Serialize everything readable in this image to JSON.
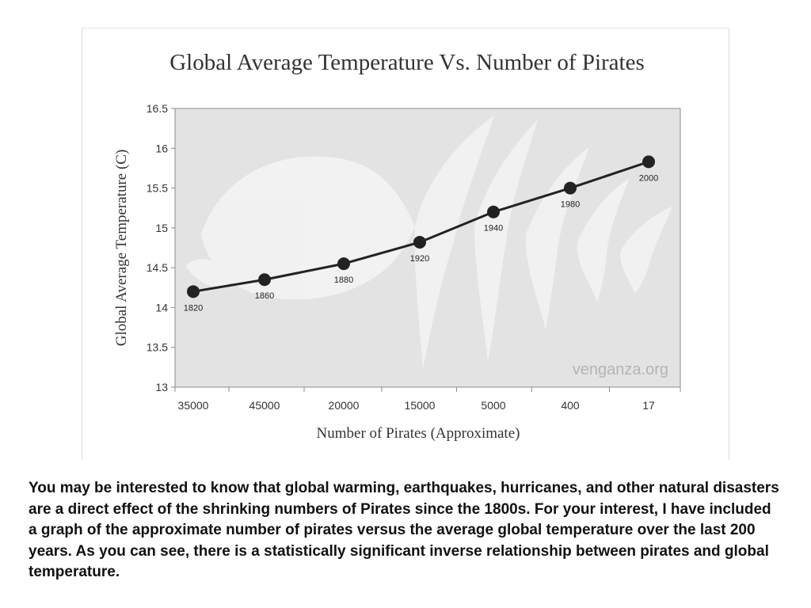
{
  "chart_data": {
    "type": "line",
    "title": "Global Average Temperature Vs. Number of Pirates",
    "xlabel": "Number of Pirates (Approximate)",
    "ylabel": "Global Average Temperature (C)",
    "categories": [
      "35000",
      "45000",
      "20000",
      "15000",
      "5000",
      "400",
      "17"
    ],
    "points": [
      {
        "x_category": "35000",
        "y": 14.2,
        "label": "1820",
        "pos": 0.0
      },
      {
        "x_category": "45000",
        "y": 14.35,
        "label": "1860",
        "pos": 1.0
      },
      {
        "x_category": "20000",
        "y": 14.55,
        "label": "1880",
        "pos": 2.0
      },
      {
        "x_category": "15000",
        "y": 14.82,
        "label": "1920",
        "pos": 3.0
      },
      {
        "x_category": "5000",
        "y": 15.2,
        "label": "1940",
        "pos": 4.0
      },
      {
        "x_category": "400",
        "y": 15.5,
        "label": "1980",
        "pos": 5.0
      },
      {
        "x_category": "17",
        "y": 15.83,
        "label": "2000",
        "pos": 6.0
      }
    ],
    "ylim": [
      13,
      16.5
    ],
    "yticks": [
      "13",
      "13.5",
      "14",
      "14.5",
      "15",
      "15.5",
      "16",
      "16.5"
    ],
    "grid": false,
    "legend": "none",
    "watermark": "venganza.org",
    "colors": {
      "plot_bg": "#e3e3e3",
      "line": "#222222",
      "marker": "#222222",
      "watermark": "#b4b4b4"
    }
  },
  "caption": "You may be interested to know that global warming, earthquakes, hurricanes, and other natural disasters are a direct effect of the shrinking numbers of Pirates since the 1800s. For your interest, I have included a graph of the approximate number of pirates versus the average global temperature over the last 200 years. As you can see, there is a statistically significant inverse relationship between pirates and global temperature."
}
